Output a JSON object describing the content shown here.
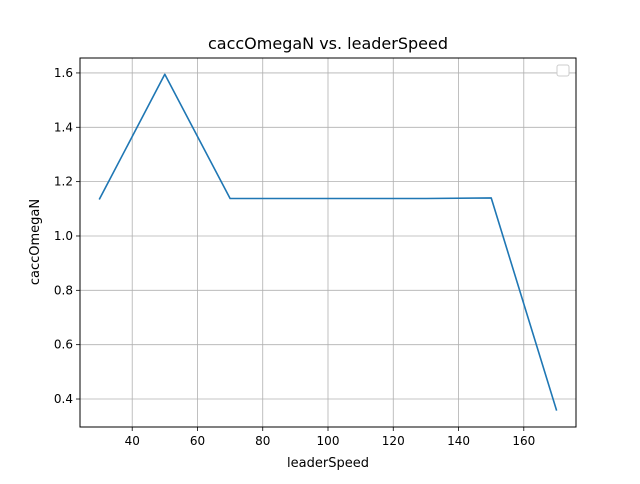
{
  "chart_data": {
    "type": "line",
    "title": "caccOmegaN vs. leaderSpeed",
    "xlabel": "leaderSpeed",
    "ylabel": "caccOmegaN",
    "xlim": [
      24,
      176
    ],
    "ylim": [
      0.297,
      1.655
    ],
    "xticks": [
      40,
      60,
      80,
      100,
      120,
      140,
      160
    ],
    "yticks": [
      0.4,
      0.6,
      0.8,
      1.0,
      1.2,
      1.4,
      1.6
    ],
    "xtick_labels": [
      "40",
      "60",
      "80",
      "100",
      "120",
      "140",
      "160"
    ],
    "ytick_labels": [
      "0.4",
      "0.6",
      "0.8",
      "1.0",
      "1.2",
      "1.4",
      "1.6"
    ],
    "grid": true,
    "legend": "upper right, empty",
    "series": [
      {
        "color": "#1f77b4",
        "x": [
          30,
          50,
          70,
          90,
          110,
          130,
          150,
          170
        ],
        "y": [
          1.137,
          1.595,
          1.138,
          1.138,
          1.138,
          1.138,
          1.14,
          0.36
        ]
      }
    ]
  }
}
